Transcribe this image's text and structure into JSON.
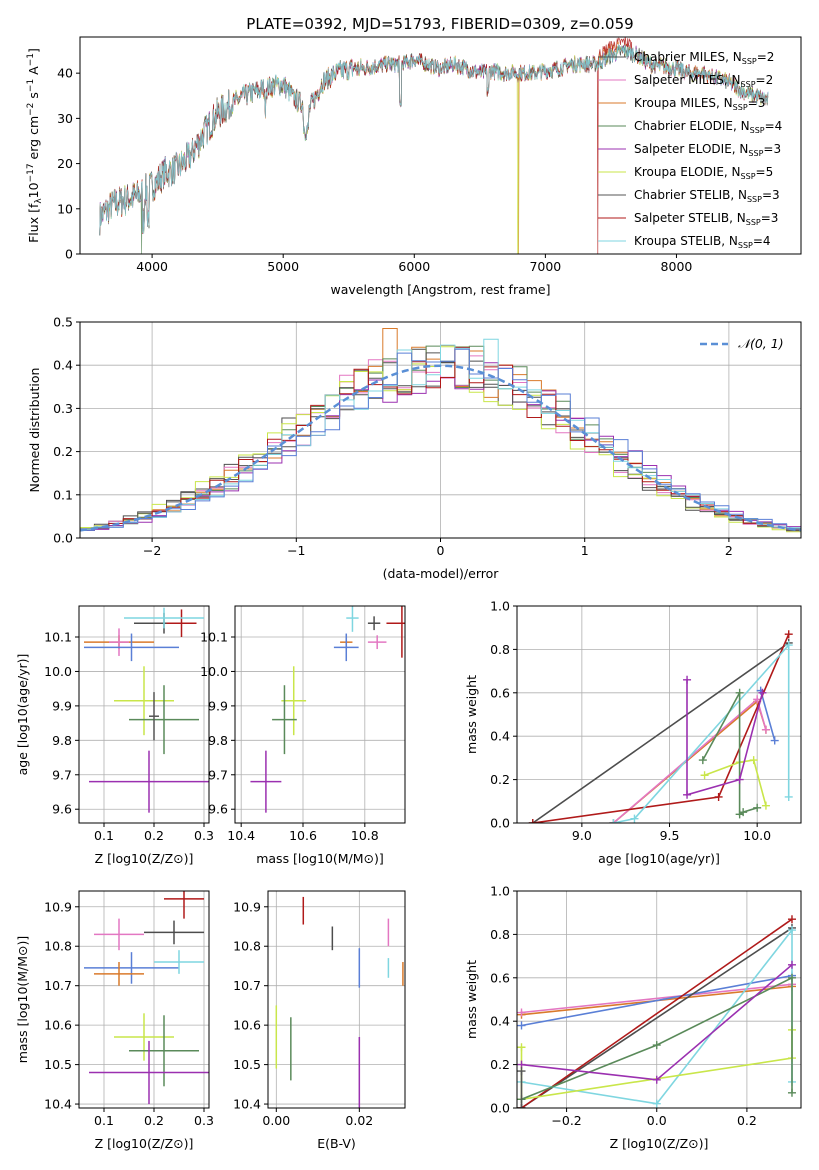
{
  "figure": {
    "title": "PLATE=0392, MJD=51793, FIBERID=0309, z=0.059"
  },
  "colors": {
    "Chabrier MILES": "#4d4d4d",
    "Salpeter MILES": "#e377c2",
    "Kroupa MILES": "#d97a2b",
    "Chabrier ELODIE": "#5a8a5a",
    "Salpeter ELODIE": "#9b30b0",
    "Kroupa ELODIE": "#c9e64a",
    "Chabrier STELIB": "#555555",
    "Salpeter STELIB": "#b01a1a",
    "Kroupa STELIB": "#7fd6e0",
    "gauss": "#5a8fd6",
    "blue": "#5a7fd6"
  },
  "chart_data": [
    {
      "id": "spectrum",
      "type": "line",
      "xlabel": "wavelength [Angstrom, rest frame]",
      "ylabel": "Flux [f_λ10^-17 erg cm^-2 s^-1 A^-1]",
      "xlim": [
        3450,
        8950
      ],
      "ylim": [
        0,
        48
      ],
      "xticks": [
        4000,
        5000,
        6000,
        7000,
        8000
      ],
      "yticks": [
        0,
        10,
        20,
        30,
        40
      ],
      "legend_position": "upper right",
      "series": [
        {
          "name": "Chabrier MILES, N_SSP=2"
        },
        {
          "name": "Salpeter MILES, N_SSP=2"
        },
        {
          "name": "Kroupa MILES, N_SSP=3"
        },
        {
          "name": "Chabrier ELODIE, N_SSP=4"
        },
        {
          "name": "Salpeter ELODIE, N_SSP=3"
        },
        {
          "name": "Kroupa ELODIE, N_SSP=5"
        },
        {
          "name": "Chabrier STELIB, N_SSP=3"
        },
        {
          "name": "Salpeter STELIB, N_SSP=3"
        },
        {
          "name": "Kroupa STELIB, N_SSP=4"
        }
      ],
      "envelope": {
        "x": [
          3600,
          3700,
          3800,
          3900,
          4000,
          4100,
          4200,
          4300,
          4400,
          4500,
          4600,
          4700,
          4800,
          4900,
          5000,
          5100,
          5200,
          5300,
          5400,
          5500,
          5600,
          5700,
          5800,
          5900,
          6000,
          6100,
          6200,
          6300,
          6400,
          6500,
          6600,
          6700,
          6800,
          6900,
          7000,
          7100,
          7200,
          7300,
          7400,
          7500,
          7600,
          7700,
          7800,
          7900,
          8000,
          8100,
          8200,
          8300,
          8400,
          8500,
          8600,
          8700
        ],
        "y": [
          8,
          11,
          12,
          13,
          15,
          18,
          19,
          22,
          27,
          31,
          33,
          35,
          36,
          37,
          37.5,
          34,
          32,
          38,
          40,
          41,
          41,
          41.5,
          42,
          42,
          43,
          42,
          41,
          42,
          41,
          40,
          40.5,
          40,
          40,
          40,
          40.5,
          41,
          42,
          42,
          42,
          44,
          45,
          44,
          42,
          41.5,
          41,
          40,
          40,
          39,
          38,
          36,
          35,
          34
        ]
      },
      "glitches": [
        {
          "x": 3920,
          "y": 0
        },
        {
          "x": 6790,
          "y": 0
        },
        {
          "x": 7400,
          "y": 0
        }
      ]
    },
    {
      "id": "residuals",
      "type": "histogram",
      "xlabel": "(data-model)/error",
      "ylabel": "Normed distribution",
      "xlim": [
        -2.5,
        2.5
      ],
      "ylim": [
        0,
        0.5
      ],
      "xticks": [
        -2,
        -1,
        0,
        1,
        2
      ],
      "yticks": [
        0.0,
        0.1,
        0.2,
        0.3,
        0.4,
        0.5
      ],
      "legend": "𝒩(0, 1)",
      "bin_width": 0.1
    },
    {
      "id": "age_vs_Z",
      "type": "scatter",
      "xlabel": "Z [log10(Z/Z⊙)]",
      "ylabel": "age [log10(age/yr)]",
      "xlim": [
        0.05,
        0.31
      ],
      "ylim": [
        9.56,
        10.19
      ],
      "xticks": [
        0.1,
        0.2,
        0.3
      ],
      "yticks": [
        9.6,
        9.7,
        9.8,
        9.9,
        10.0,
        10.1
      ],
      "points": [
        {
          "s": "Kroupa MILES",
          "x": 0.13,
          "xe": 0.07,
          "y": 10.085,
          "ye": 0.02
        },
        {
          "s": "Salpeter MILES",
          "x": 0.13,
          "xe": 0.02,
          "y": 10.085,
          "ye": 0.04
        },
        {
          "s": "blue",
          "x": 0.155,
          "xe": 0.095,
          "y": 10.07,
          "ye": 0.04
        },
        {
          "s": "Chabrier MILES",
          "x": 0.22,
          "xe": 0.06,
          "y": 10.14,
          "ye": 0.03
        },
        {
          "s": "Salpeter STELIB",
          "x": 0.255,
          "xe": 0.03,
          "y": 10.14,
          "ye": 0.04
        },
        {
          "s": "Kroupa STELIB",
          "x": 0.22,
          "xe": 0.08,
          "y": 10.155,
          "ye": 0.03
        },
        {
          "s": "Kroupa ELODIE",
          "x": 0.18,
          "xe": 0.06,
          "y": 9.915,
          "ye": 0.1
        },
        {
          "s": "Chabrier ELODIE",
          "x": 0.22,
          "xe": 0.07,
          "y": 9.86,
          "ye": 0.1
        },
        {
          "s": "Chabrier STELIB",
          "x": 0.2,
          "xe": 0.01,
          "y": 9.87,
          "ye": 0.07
        },
        {
          "s": "Salpeter ELODIE",
          "x": 0.19,
          "xe": 0.12,
          "y": 9.68,
          "ye": 0.09
        }
      ]
    },
    {
      "id": "age_vs_mass",
      "type": "scatter",
      "xlabel": "mass [log10(M/M⊙)]",
      "ylabel": "",
      "xlim": [
        10.38,
        10.93
      ],
      "ylim": [
        9.56,
        10.19
      ],
      "xticks": [
        10.4,
        10.6,
        10.8
      ],
      "yticks": [
        9.6,
        9.7,
        9.8,
        9.9,
        10.0,
        10.1
      ],
      "points": [
        {
          "s": "Kroupa MILES",
          "x": 10.74,
          "xe": 0.02,
          "y": 10.085,
          "ye": 0.02
        },
        {
          "s": "Salpeter MILES",
          "x": 10.84,
          "xe": 0.03,
          "y": 10.085,
          "ye": 0.02
        },
        {
          "s": "blue",
          "x": 10.74,
          "xe": 0.04,
          "y": 10.07,
          "ye": 0.04
        },
        {
          "s": "Chabrier MILES",
          "x": 10.83,
          "xe": 0.02,
          "y": 10.14,
          "ye": 0.02
        },
        {
          "s": "Salpeter STELIB",
          "x": 10.92,
          "xe": 0.05,
          "y": 10.14,
          "ye": 0.1
        },
        {
          "s": "Kroupa STELIB",
          "x": 10.76,
          "xe": 0.02,
          "y": 10.155,
          "ye": 0.04
        },
        {
          "s": "Kroupa ELODIE",
          "x": 10.57,
          "xe": 0.04,
          "y": 9.915,
          "ye": 0.1
        },
        {
          "s": "Chabrier ELODIE",
          "x": 10.54,
          "xe": 0.04,
          "y": 9.86,
          "ye": 0.1
        },
        {
          "s": "Salpeter ELODIE",
          "x": 10.48,
          "xe": 0.05,
          "y": 9.68,
          "ye": 0.09
        }
      ]
    },
    {
      "id": "weight_vs_age",
      "type": "line",
      "xlabel": "age [log10(age/yr)]",
      "ylabel": "mass weight",
      "xlim": [
        8.63,
        10.25
      ],
      "ylim": [
        0,
        1
      ],
      "xticks": [
        9.0,
        9.5,
        10.0
      ],
      "yticks": [
        0.0,
        0.2,
        0.4,
        0.6,
        0.8,
        1.0
      ],
      "series": [
        {
          "s": "Kroupa MILES",
          "x": [
            9.18,
            10.0,
            10.05
          ],
          "y": [
            0.0,
            0.56,
            0.43
          ]
        },
        {
          "s": "Salpeter MILES",
          "x": [
            9.18,
            10.0,
            10.05
          ],
          "y": [
            0.0,
            0.57,
            0.43
          ]
        },
        {
          "s": "blue",
          "x": [
            10.02,
            10.1
          ],
          "y": [
            0.61,
            0.38
          ]
        },
        {
          "s": "Chabrier MILES",
          "x": [
            8.72,
            10.18
          ],
          "y": [
            0.0,
            0.83
          ]
        },
        {
          "s": "Salpeter STELIB",
          "x": [
            8.72,
            9.78,
            10.18
          ],
          "y": [
            0.0,
            0.12,
            0.87
          ]
        },
        {
          "s": "Kroupa STELIB",
          "x": [
            9.18,
            9.3,
            10.18,
            10.18
          ],
          "y": [
            0.0,
            0.02,
            0.82,
            0.12
          ]
        },
        {
          "s": "Kroupa ELODIE",
          "x": [
            9.7,
            9.9,
            9.98,
            10.05
          ],
          "y": [
            0.22,
            0.28,
            0.29,
            0.08
          ]
        },
        {
          "s": "Chabrier ELODIE",
          "x": [
            9.69,
            9.9,
            9.9,
            9.92,
            10.0
          ],
          "y": [
            0.29,
            0.6,
            0.04,
            0.05,
            0.07
          ]
        },
        {
          "s": "Salpeter ELODIE",
          "x": [
            9.6,
            9.6,
            9.9,
            10.03
          ],
          "y": [
            0.66,
            0.13,
            0.2,
            0.6
          ]
        }
      ]
    },
    {
      "id": "mass_vs_Z",
      "type": "scatter",
      "xlabel": "Z [log10(Z/Z⊙)]",
      "ylabel": "mass [log10(M/M⊙)]",
      "xlim": [
        0.05,
        0.31
      ],
      "ylim": [
        10.39,
        10.94
      ],
      "xticks": [
        0.1,
        0.2,
        0.3
      ],
      "yticks": [
        10.4,
        10.5,
        10.6,
        10.7,
        10.8,
        10.9
      ],
      "points": [
        {
          "s": "Salpeter MILES",
          "x": 0.13,
          "xe": 0.05,
          "y": 10.83,
          "ye": 0.04
        },
        {
          "s": "Chabrier MILES",
          "x": 0.24,
          "xe": 0.06,
          "y": 10.835,
          "ye": 0.03
        },
        {
          "s": "Salpeter STELIB",
          "x": 0.26,
          "xe": 0.04,
          "y": 10.92,
          "ye": 0.05
        },
        {
          "s": "blue",
          "x": 0.155,
          "xe": 0.095,
          "y": 10.745,
          "ye": 0.04
        },
        {
          "s": "Kroupa MILES",
          "x": 0.13,
          "xe": 0.05,
          "y": 10.73,
          "ye": 0.03
        },
        {
          "s": "Kroupa STELIB",
          "x": 0.25,
          "xe": 0.05,
          "y": 10.76,
          "ye": 0.03
        },
        {
          "s": "Kroupa ELODIE",
          "x": 0.18,
          "xe": 0.06,
          "y": 10.57,
          "ye": 0.06
        },
        {
          "s": "Chabrier ELODIE",
          "x": 0.22,
          "xe": 0.07,
          "y": 10.535,
          "ye": 0.09
        },
        {
          "s": "Salpeter ELODIE",
          "x": 0.19,
          "xe": 0.12,
          "y": 10.48,
          "ye": 0.08
        }
      ]
    },
    {
      "id": "mass_vs_ebv",
      "type": "scatter",
      "xlabel": "E(B-V)",
      "ylabel": "",
      "xlim": [
        -0.002,
        0.031
      ],
      "ylim": [
        10.39,
        10.94
      ],
      "xticks": [
        0.0,
        0.02
      ],
      "yticks": [
        10.4,
        10.5,
        10.6,
        10.7,
        10.8,
        10.9
      ],
      "points": [
        {
          "s": "Salpeter STELIB",
          "x": 0.0065,
          "xe": 0,
          "y": 10.89,
          "ye": 0.035
        },
        {
          "s": "Chabrier MILES",
          "x": 0.0135,
          "xe": 0,
          "y": 10.82,
          "ye": 0.03
        },
        {
          "s": "Salpeter MILES",
          "x": 0.027,
          "xe": 0,
          "y": 10.835,
          "ye": 0.035
        },
        {
          "s": "blue",
          "x": 0.02,
          "xe": 0,
          "y": 10.745,
          "ye": 0.05
        },
        {
          "s": "Kroupa STELIB",
          "x": 0.027,
          "xe": 0,
          "y": 10.745,
          "ye": 0.025
        },
        {
          "s": "Kroupa MILES",
          "x": 0.0305,
          "xe": 0,
          "y": 10.73,
          "ye": 0.03
        },
        {
          "s": "Kroupa ELODIE",
          "x": 0.0,
          "xe": 0,
          "y": 10.57,
          "ye": 0.08
        },
        {
          "s": "Chabrier ELODIE",
          "x": 0.0035,
          "xe": 0,
          "y": 10.54,
          "ye": 0.08
        },
        {
          "s": "Salpeter ELODIE",
          "x": 0.02,
          "xe": 0,
          "y": 10.48,
          "ye": 0.09
        }
      ]
    },
    {
      "id": "weight_vs_Z",
      "type": "line",
      "xlabel": "Z [log10(Z/Z⊙)]",
      "ylabel": "mass weight",
      "xlim": [
        -0.31,
        0.32
      ],
      "ylim": [
        0,
        1
      ],
      "xticks": [
        -0.2,
        0.0,
        0.2
      ],
      "yticks": [
        0.0,
        0.2,
        0.4,
        0.6,
        0.8,
        1.0
      ],
      "series": [
        {
          "s": "Kroupa MILES",
          "x": [
            -0.3,
            0.3
          ],
          "y": [
            0.43,
            0.56
          ]
        },
        {
          "s": "Salpeter MILES",
          "x": [
            -0.3,
            0.3
          ],
          "y": [
            0.44,
            0.57
          ]
        },
        {
          "s": "blue",
          "x": [
            -0.3,
            0.3
          ],
          "y": [
            0.38,
            0.61
          ]
        },
        {
          "s": "Chabrier MILES",
          "x": [
            -0.3,
            0.3
          ],
          "y": [
            0.0,
            0.83
          ]
        },
        {
          "s": "Salpeter STELIB",
          "x": [
            -0.3,
            0.3
          ],
          "y": [
            0.0,
            0.87
          ]
        },
        {
          "s": "Kroupa STELIB",
          "x": [
            -0.3,
            0.0,
            0.3,
            0.3
          ],
          "y": [
            0.12,
            0.02,
            0.82,
            0.12
          ]
        },
        {
          "s": "Kroupa ELODIE",
          "x": [
            -0.3,
            -0.3,
            0.3,
            0.3
          ],
          "y": [
            0.28,
            0.04,
            0.23,
            0.36
          ]
        },
        {
          "s": "Chabrier ELODIE",
          "x": [
            -0.3,
            0.0,
            0.3,
            0.3
          ],
          "y": [
            0.04,
            0.29,
            0.6,
            0.07
          ]
        },
        {
          "s": "Salpeter ELODIE",
          "x": [
            -0.3,
            0.0,
            0.3
          ],
          "y": [
            0.2,
            0.13,
            0.66
          ]
        },
        {
          "s": "Chabrier STELIB",
          "x": [
            -0.3,
            -0.3
          ],
          "y": [
            0.17,
            0.0
          ]
        }
      ]
    }
  ]
}
